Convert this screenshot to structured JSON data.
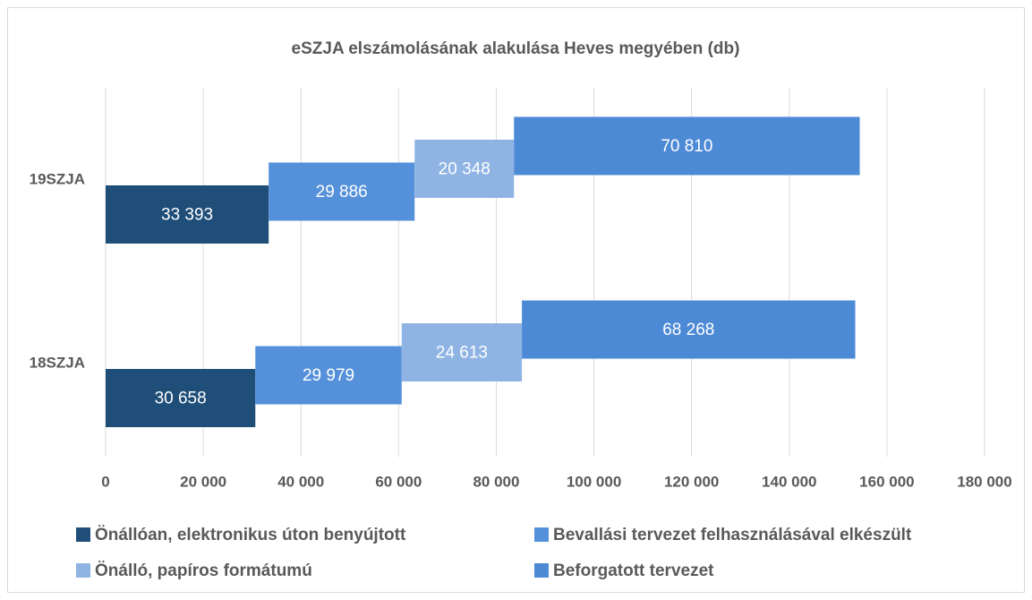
{
  "chart_data": {
    "type": "stacked-bar-horizontal",
    "title": "eSZJA elszámolásának alakulása Heves megyében (db)",
    "categories": [
      "19SZJA",
      "18SZJA"
    ],
    "series": [
      {
        "name": "Önállóan, elektronikus úton benyújtott",
        "color": "#1f4e79",
        "values": [
          33393,
          30658
        ],
        "value_labels": [
          "33 393",
          "30 658"
        ]
      },
      {
        "name": "Bevallási tervezet felhasználásával elkészült",
        "color": "#5591da",
        "values": [
          29886,
          29979
        ],
        "value_labels": [
          "29 886",
          "29 979"
        ]
      },
      {
        "name": "Önálló, papíros formátumú",
        "color": "#8fb4e3",
        "values": [
          20348,
          24613
        ],
        "value_labels": [
          "20 348",
          "24 613"
        ]
      },
      {
        "name": "Beforgatott tervezet",
        "color": "#4d8ad6",
        "values": [
          70810,
          68268
        ],
        "value_labels": [
          "70 810",
          "68 268"
        ]
      }
    ],
    "xlim": [
      0,
      180000
    ],
    "xticks": [
      0,
      {
        "value": 20000,
        "label": "20 000"
      },
      {
        "value": 40000,
        "label": "40 000"
      },
      {
        "value": 60000,
        "label": "60 000"
      },
      {
        "value": 80000,
        "label": "80 000"
      },
      {
        "value": 100000,
        "label": "100 000"
      },
      {
        "value": 120000,
        "label": "120 000"
      },
      {
        "value": 140000,
        "label": "140 000"
      },
      {
        "value": 160000,
        "label": "160 000"
      },
      {
        "value": 180000,
        "label": "180 000"
      }
    ],
    "grid": true,
    "legend": "bottom"
  }
}
